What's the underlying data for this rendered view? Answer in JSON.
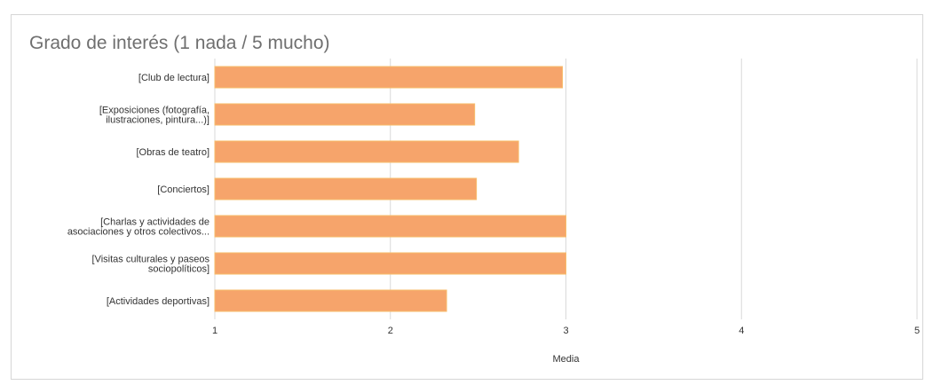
{
  "chart_data": {
    "type": "bar",
    "orientation": "horizontal",
    "title": "Grado de interés (1 nada / 5 mucho)",
    "xlabel": "Media",
    "ylabel": "",
    "xlim": [
      1,
      5
    ],
    "ticks": [
      "1",
      "2",
      "3",
      "4",
      "5"
    ],
    "grid": true,
    "categories": [
      [
        "[Club de lectura]"
      ],
      [
        "[Exposiciones (fotografía,",
        "ilustraciones, pintura...)]"
      ],
      [
        "[Obras de teatro]"
      ],
      [
        "[Conciertos]"
      ],
      [
        "[Charlas y actividades de",
        "asociaciones y otros colectivos..."
      ],
      [
        "[Visitas culturales y paseos",
        "sociopolíticos]"
      ],
      [
        "[Actividades deportivas]"
      ]
    ],
    "values": [
      2.98,
      2.48,
      2.73,
      2.49,
      3.0,
      3.0,
      2.32
    ],
    "bar_color": "#f6a46b",
    "bar_edge_color": "#f7bb6a",
    "grid_color": "#d9d9d9"
  }
}
